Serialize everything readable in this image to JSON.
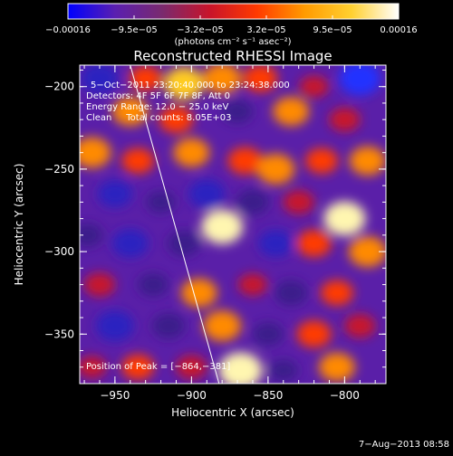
{
  "chart_data": {
    "type": "heatmap",
    "title": "Reconstructed RHESSI Image",
    "xlabel": "Heliocentric X (arcsec)",
    "ylabel": "Heliocentric Y (arcsec)",
    "xlim": [
      -973,
      -773
    ],
    "ylim": [
      -380,
      -187
    ],
    "x_ticks": [
      -950,
      -900,
      -850,
      -800
    ],
    "x_tick_labels": [
      "−950",
      "−900",
      "−850",
      "−800"
    ],
    "y_ticks": [
      -200,
      -250,
      -300,
      -350
    ],
    "y_tick_labels": [
      "−200",
      "−250",
      "−300",
      "−350"
    ],
    "colorbar": {
      "range": [
        -0.00016,
        0.00016
      ],
      "tick_labels": [
        "−0.00016",
        "−9.5e−05",
        "−3.2e−05",
        "3.2e−05",
        "9.5e−05",
        "0.00016"
      ],
      "unit_label": "(photons cm⁻² s⁻¹ asec⁻²)",
      "colors": [
        "#0000ff",
        "#5a1fb0",
        "#7a2a6e",
        "#c8142a",
        "#ff3a00",
        "#ff9a00",
        "#ffd030",
        "#ffffff"
      ]
    },
    "annotations": [
      "5−Oct−2011 23:20:40.000 to 23:24:38.000",
      "Detectors: 4F 5F 6F 7F 8F, Att 0",
      "Energy Range: 12.0 − 25.0 keV",
      "Clean     Total counts: 8.05E+03"
    ],
    "peak_label": "Position of Peak = [−864,−381]",
    "limb_line": {
      "x": [
        -940,
        -882
      ],
      "y": [
        -187,
        -380
      ]
    },
    "blobs": [
      {
        "x": -960,
        "y": -195,
        "v": -0.7
      },
      {
        "x": -930,
        "y": -195,
        "v": 0.4
      },
      {
        "x": -905,
        "y": -198,
        "v": 0.8
      },
      {
        "x": -880,
        "y": -195,
        "v": 0.7
      },
      {
        "x": -855,
        "y": -195,
        "v": 0.5
      },
      {
        "x": -820,
        "y": -200,
        "v": 0.2
      },
      {
        "x": -790,
        "y": -195,
        "v": -0.9
      },
      {
        "x": -940,
        "y": -215,
        "v": 0.6
      },
      {
        "x": -910,
        "y": -220,
        "v": 0.5
      },
      {
        "x": -870,
        "y": -215,
        "v": -0.3
      },
      {
        "x": -835,
        "y": -215,
        "v": 0.6
      },
      {
        "x": -800,
        "y": -220,
        "v": 0.3
      },
      {
        "x": -965,
        "y": -240,
        "v": 0.7
      },
      {
        "x": -935,
        "y": -245,
        "v": 0.4
      },
      {
        "x": -900,
        "y": -240,
        "v": 0.6
      },
      {
        "x": -865,
        "y": -245,
        "v": 0.5
      },
      {
        "x": -845,
        "y": -250,
        "v": 0.7
      },
      {
        "x": -815,
        "y": -245,
        "v": 0.4
      },
      {
        "x": -785,
        "y": -245,
        "v": 0.6
      },
      {
        "x": -950,
        "y": -265,
        "v": -0.5
      },
      {
        "x": -920,
        "y": -270,
        "v": -0.2
      },
      {
        "x": -890,
        "y": -265,
        "v": -0.6
      },
      {
        "x": -860,
        "y": -270,
        "v": -0.4
      },
      {
        "x": -880,
        "y": -285,
        "v": 0.9
      },
      {
        "x": -830,
        "y": -270,
        "v": 0.3
      },
      {
        "x": -800,
        "y": -280,
        "v": 0.9
      },
      {
        "x": -968,
        "y": -290,
        "v": -0.3
      },
      {
        "x": -940,
        "y": -295,
        "v": -0.6
      },
      {
        "x": -905,
        "y": -295,
        "v": -0.4
      },
      {
        "x": -845,
        "y": -295,
        "v": -0.5
      },
      {
        "x": -820,
        "y": -295,
        "v": 0.5
      },
      {
        "x": -785,
        "y": -300,
        "v": 0.7
      },
      {
        "x": -960,
        "y": -320,
        "v": 0.3
      },
      {
        "x": -925,
        "y": -320,
        "v": -0.3
      },
      {
        "x": -895,
        "y": -325,
        "v": 0.6
      },
      {
        "x": -860,
        "y": -320,
        "v": 0.2
      },
      {
        "x": -835,
        "y": -325,
        "v": -0.4
      },
      {
        "x": -805,
        "y": -325,
        "v": 0.4
      },
      {
        "x": -950,
        "y": -345,
        "v": -0.7
      },
      {
        "x": -915,
        "y": -345,
        "v": -0.4
      },
      {
        "x": -880,
        "y": -345,
        "v": 0.7
      },
      {
        "x": -850,
        "y": -350,
        "v": -0.3
      },
      {
        "x": -820,
        "y": -350,
        "v": 0.5
      },
      {
        "x": -790,
        "y": -345,
        "v": 0.3
      },
      {
        "x": -965,
        "y": -370,
        "v": 0.2
      },
      {
        "x": -935,
        "y": -370,
        "v": 0.4
      },
      {
        "x": -900,
        "y": -370,
        "v": 0.3
      },
      {
        "x": -868,
        "y": -372,
        "v": 1.0
      },
      {
        "x": -840,
        "y": -372,
        "v": -0.2
      },
      {
        "x": -805,
        "y": -370,
        "v": 0.6
      }
    ]
  },
  "timestamp": "7−Aug−2013 08:58"
}
